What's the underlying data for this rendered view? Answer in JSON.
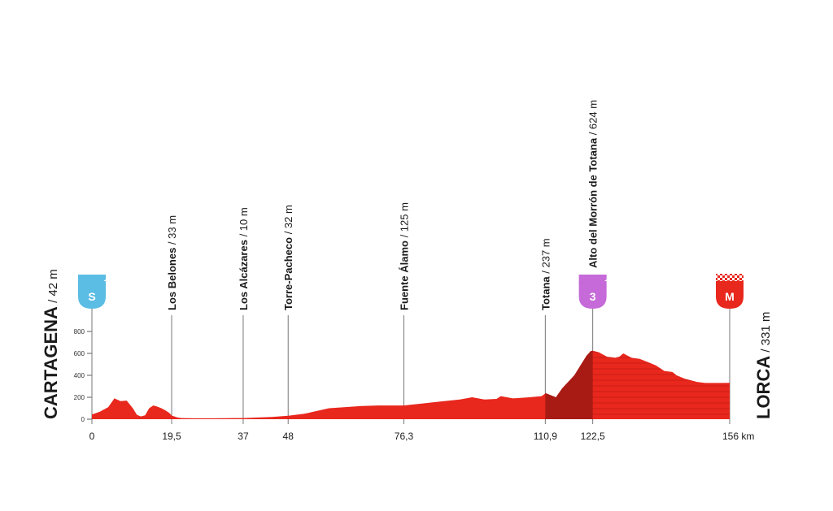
{
  "chart_data": {
    "type": "area",
    "title": "",
    "xlabel": "",
    "ylabel": "",
    "x_unit": "km",
    "y_unit": "m",
    "xlim": [
      0,
      156
    ],
    "ylim": [
      0,
      800
    ],
    "yticks": [
      0,
      200,
      400,
      600,
      800
    ],
    "xticks": [
      {
        "value": 0,
        "label": "0"
      },
      {
        "value": 19.5,
        "label": "19,5"
      },
      {
        "value": 37,
        "label": "37"
      },
      {
        "value": 48,
        "label": "48"
      },
      {
        "value": 76.3,
        "label": "76,3"
      },
      {
        "value": 110.9,
        "label": "110,9"
      },
      {
        "value": 122.5,
        "label": "122,5"
      },
      {
        "value": 156,
        "label": "156 km"
      }
    ],
    "profile": {
      "x": [
        0,
        2,
        4,
        5.5,
        7,
        8.5,
        10,
        11,
        12,
        13,
        14,
        15,
        16,
        17,
        18,
        19,
        19.5,
        21,
        22,
        25,
        30,
        35,
        37,
        40,
        44,
        48,
        52,
        55,
        58,
        62,
        66,
        70,
        73,
        76.3,
        80,
        85,
        90,
        93,
        96,
        99,
        100,
        103,
        107,
        110,
        111,
        113.5,
        115,
        118,
        120,
        121,
        122,
        122.5,
        124,
        125,
        126,
        128,
        129,
        130,
        131,
        132,
        134,
        136,
        138,
        140,
        142,
        143,
        145,
        148,
        150,
        153,
        156
      ],
      "y": [
        42,
        70,
        110,
        190,
        165,
        170,
        100,
        40,
        25,
        35,
        100,
        125,
        115,
        100,
        80,
        55,
        33,
        15,
        10,
        8,
        8,
        10,
        10,
        15,
        20,
        32,
        50,
        75,
        100,
        110,
        120,
        125,
        125,
        125,
        140,
        160,
        180,
        200,
        180,
        185,
        210,
        190,
        200,
        210,
        237,
        200,
        280,
        400,
        520,
        580,
        620,
        624,
        610,
        590,
        570,
        560,
        570,
        600,
        580,
        560,
        550,
        520,
        490,
        440,
        430,
        400,
        370,
        340,
        330,
        330,
        331
      ]
    },
    "climb_start_km": 110.9,
    "waypoints": [
      {
        "km": 19.5,
        "name": "Los Belones",
        "alt": "/ 33 m"
      },
      {
        "km": 37,
        "name": "Los Alcázares",
        "alt": "/ 10 m"
      },
      {
        "km": 48,
        "name": "Torre-Pacheco",
        "alt": "/ 32 m"
      },
      {
        "km": 76.3,
        "name": "Fuente Álamo",
        "alt": "/ 125 m"
      },
      {
        "km": 110.9,
        "name": "Totana",
        "alt": "/ 237 m"
      },
      {
        "km": 122.5,
        "name": "Alto del Morrón de Totana",
        "alt": "/ 624 m"
      }
    ],
    "start": {
      "km": 0,
      "name": "CARTAGENA",
      "alt": "/ 42 m",
      "badge": "S"
    },
    "finish": {
      "km": 156,
      "name": "LORCA",
      "alt": "/ 331 m",
      "badge": "M"
    },
    "climb": {
      "km": 122.5,
      "category": "3"
    },
    "colors": {
      "profile_fill": "#e8271d",
      "climb_fill": "#a81b14",
      "start_badge": "#5bbde4",
      "climb_badge": "#c56ad8",
      "finish_badge": "#e8271d",
      "line": "#777777"
    }
  }
}
